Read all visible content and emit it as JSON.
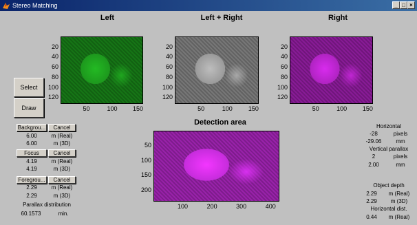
{
  "window": {
    "title": "Stereo Matching",
    "min_label": "_",
    "max_label": "□",
    "close_label": "×"
  },
  "panels": {
    "left": {
      "title": "Left",
      "color": "#1a8a1a",
      "yticks": [
        "20",
        "40",
        "60",
        "80",
        "100",
        "120"
      ],
      "xticks": [
        "50",
        "100",
        "150"
      ]
    },
    "combined": {
      "title": "Left + Right",
      "color": "#8c8c8c",
      "yticks": [
        "20",
        "40",
        "60",
        "80",
        "100",
        "120"
      ],
      "xticks": [
        "50",
        "100",
        "150"
      ]
    },
    "right": {
      "title": "Right",
      "color": "#a020b0",
      "yticks": [
        "20",
        "40",
        "60",
        "80",
        "100",
        "120"
      ],
      "xticks": [
        "50",
        "100",
        "150"
      ]
    },
    "detection": {
      "title": "Detection area",
      "color": "#b428c8",
      "yticks": [
        "50",
        "100",
        "150",
        "200"
      ],
      "xticks": [
        "100",
        "200",
        "300",
        "400"
      ]
    }
  },
  "buttons": {
    "select": "Select",
    "draw": "Draw"
  },
  "left_panel": {
    "background": {
      "label": "Backgrou...",
      "cancel": "Cancel",
      "real_value": "6.00",
      "real_unit": "m (Real)",
      "d3_value": "6.00",
      "d3_unit": "m (3D)"
    },
    "focus": {
      "label": "Focus",
      "cancel": "Cancel",
      "real_value": "4.19",
      "real_unit": "m (Real)",
      "d3_value": "4.19",
      "d3_unit": "m (3D)"
    },
    "foreground": {
      "label": "Foregrou...",
      "cancel": "Cancel",
      "real_value": "2.29",
      "real_unit": "m (Real)",
      "d3_value": "2.29",
      "d3_unit": "m (3D)"
    },
    "parallax": {
      "label": "Parallax distribution",
      "value": "60.1573",
      "unit": "min."
    }
  },
  "right_panel": {
    "horizontal": {
      "label": "Horizontal",
      "pixels_value": "-28",
      "pixels_unit": "pixels",
      "mm_value": "-29.06",
      "mm_unit": "mm"
    },
    "vertical": {
      "label": "Vertical parallax",
      "pixels_value": "2",
      "pixels_unit": "pixels",
      "mm_value": "2.00",
      "mm_unit": "mm"
    },
    "depth": {
      "label": "Object depth",
      "real_value": "2.29",
      "real_unit": "m (Real)",
      "d3_value": "2.29",
      "d3_unit": "m (3D)"
    },
    "hdist": {
      "label": "Horizontal dist.",
      "value": "0.44",
      "unit": "m (Real)"
    }
  }
}
